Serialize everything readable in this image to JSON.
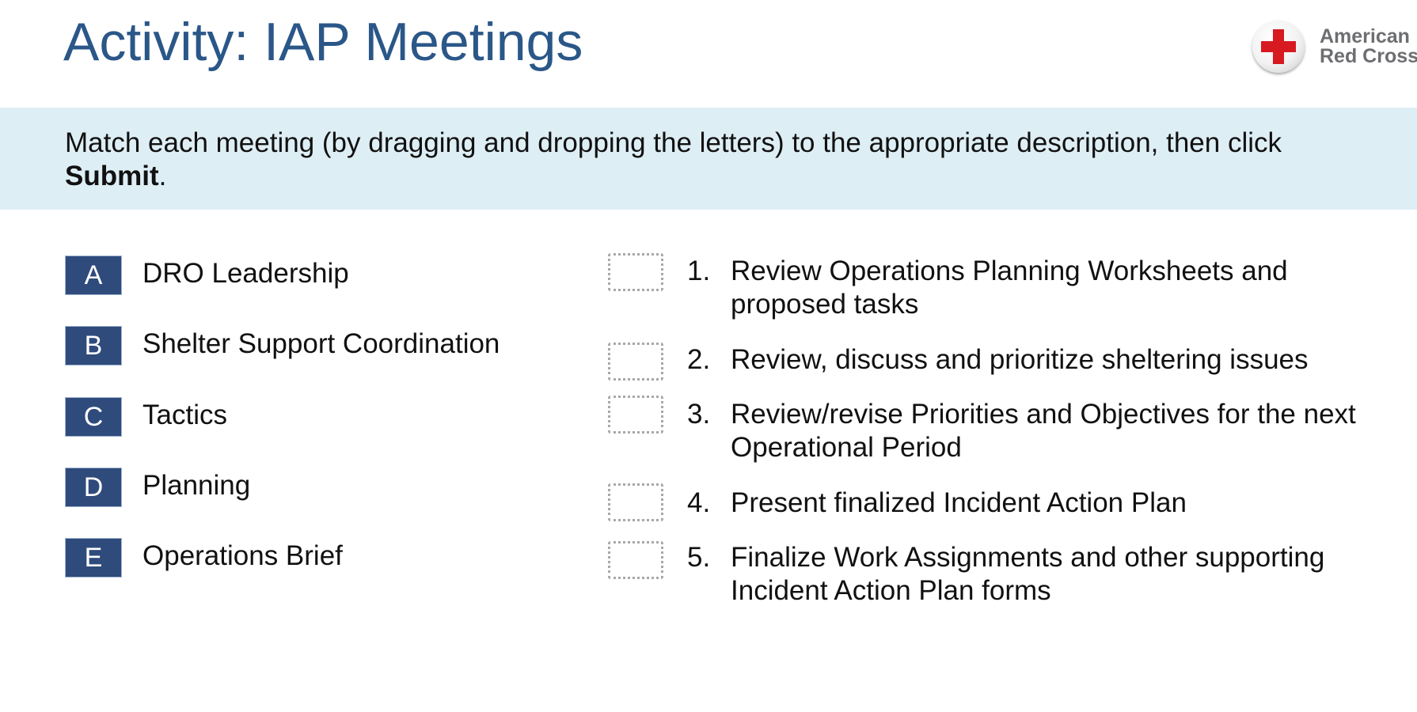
{
  "title": "Activity: IAP Meetings",
  "logo": {
    "line1": "American",
    "line2": "Red Cross",
    "colors": {
      "cross": "#d71920",
      "text": "#6d6e71"
    }
  },
  "instructions": {
    "text_before": "Match each meeting (by dragging and dropping the letters) to the appropriate description, then click ",
    "bold_word": "Submit",
    "text_after": "."
  },
  "choices": [
    {
      "letter": "A",
      "label": "DRO Leadership"
    },
    {
      "letter": "B",
      "label": "Shelter Support Coordination"
    },
    {
      "letter": "C",
      "label": "Tactics"
    },
    {
      "letter": "D",
      "label": "Planning"
    },
    {
      "letter": "E",
      "label": "Operations Brief"
    }
  ],
  "descriptions": [
    {
      "number": "1.",
      "text": "Review Operations Planning Worksheets and proposed tasks"
    },
    {
      "number": "2.",
      "text": "Review, discuss and prioritize sheltering issues"
    },
    {
      "number": "3.",
      "text": "Review/revise Priorities and Objectives for the next Operational Period"
    },
    {
      "number": "4.",
      "text": "Present finalized Incident Action Plan"
    },
    {
      "number": "5.",
      "text": "Finalize Work Assignments and other supporting Incident Action Plan forms"
    }
  ],
  "colors": {
    "title": "#2a5788",
    "banner": "#deeef5",
    "tile": "#2f4b7c",
    "drop_zone_border": "#a8a8a8"
  }
}
